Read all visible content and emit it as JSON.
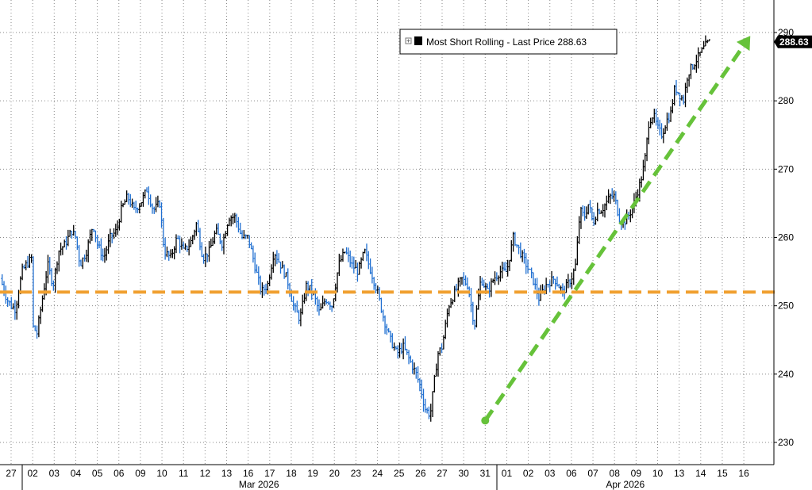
{
  "chart_data": {
    "type": "line",
    "style": "ohlc-bars",
    "legend": {
      "label": "Most Short Rolling - Last Price 288.63",
      "series_color": "#000000",
      "placement": "top-center"
    },
    "last_price_label": "288.63",
    "ylim": [
      228,
      292
    ],
    "y_ticks": [
      "230",
      "240",
      "250",
      "260",
      "270",
      "280",
      "290"
    ],
    "x_ticks": [
      "27",
      "02",
      "03",
      "04",
      "05",
      "06",
      "09",
      "10",
      "11",
      "12",
      "13",
      "16",
      "17",
      "18",
      "19",
      "20",
      "23",
      "24",
      "25",
      "26",
      "27",
      "30",
      "31",
      "01",
      "02",
      "03",
      "06",
      "07",
      "08",
      "09",
      "10",
      "13",
      "14",
      "15",
      "16"
    ],
    "months": [
      {
        "label": "Mar 2026",
        "start_index": 1,
        "end_index": 22
      },
      {
        "label": "Apr 2026",
        "start_index": 23,
        "end_index": 34
      }
    ],
    "grid": true,
    "colors": {
      "bar_up": "#000000",
      "bar_down": "#1f6fd1",
      "reference_line": "#f0a030",
      "trend_arrow": "#66c23a"
    },
    "reference_line": {
      "y": 252
    },
    "trend_arrow": {
      "start": {
        "x": 22.0,
        "y": 233.2
      },
      "end": {
        "x": 34.3,
        "y": 289.5
      }
    },
    "series": [
      {
        "close_points": [
          [
            -0.5,
            254
          ],
          [
            -0.2,
            251
          ],
          [
            0.0,
            250
          ],
          [
            0.2,
            249.5
          ],
          [
            0.5,
            255
          ],
          [
            0.7,
            256
          ],
          [
            0.95,
            257
          ],
          [
            1.0,
            247
          ],
          [
            1.2,
            246
          ],
          [
            1.5,
            252
          ],
          [
            1.7,
            256
          ],
          [
            1.95,
            253
          ],
          [
            2.2,
            258
          ],
          [
            2.5,
            259
          ],
          [
            2.8,
            261
          ],
          [
            3.0,
            260
          ],
          [
            3.2,
            256
          ],
          [
            3.5,
            258
          ],
          [
            3.8,
            262
          ],
          [
            4.0,
            259
          ],
          [
            4.3,
            257
          ],
          [
            4.6,
            260
          ],
          [
            4.9,
            261
          ],
          [
            5.1,
            264
          ],
          [
            5.4,
            266
          ],
          [
            5.7,
            264
          ],
          [
            6.0,
            265
          ],
          [
            6.3,
            267
          ],
          [
            6.6,
            264
          ],
          [
            6.9,
            265
          ],
          [
            7.1,
            258
          ],
          [
            7.4,
            257
          ],
          [
            7.7,
            260
          ],
          [
            8.0,
            258
          ],
          [
            8.3,
            259
          ],
          [
            8.6,
            262
          ],
          [
            8.9,
            257
          ],
          [
            9.2,
            258
          ],
          [
            9.5,
            261
          ],
          [
            9.8,
            259
          ],
          [
            10.1,
            263
          ],
          [
            10.4,
            263
          ],
          [
            10.7,
            260
          ],
          [
            11.0,
            260
          ],
          [
            11.3,
            256
          ],
          [
            11.6,
            252
          ],
          [
            11.9,
            253
          ],
          [
            12.2,
            258
          ],
          [
            12.5,
            256
          ],
          [
            12.8,
            254
          ],
          [
            13.1,
            250
          ],
          [
            13.4,
            248
          ],
          [
            13.7,
            253
          ],
          [
            14.0,
            252
          ],
          [
            14.3,
            249
          ],
          [
            14.6,
            251
          ],
          [
            14.9,
            250
          ],
          [
            15.2,
            256
          ],
          [
            15.5,
            258
          ],
          [
            15.8,
            256
          ],
          [
            16.1,
            255
          ],
          [
            16.4,
            258
          ],
          [
            16.7,
            255
          ],
          [
            17.0,
            252
          ],
          [
            17.3,
            248
          ],
          [
            17.6,
            245
          ],
          [
            17.9,
            243
          ],
          [
            18.2,
            244
          ],
          [
            18.5,
            242
          ],
          [
            18.8,
            240
          ],
          [
            19.0,
            238
          ],
          [
            19.2,
            235
          ],
          [
            19.45,
            234
          ],
          [
            19.6,
            238
          ],
          [
            19.8,
            243
          ],
          [
            20.0,
            244
          ],
          [
            20.3,
            250
          ],
          [
            20.6,
            252
          ],
          [
            20.9,
            254
          ],
          [
            21.2,
            253
          ],
          [
            21.5,
            247
          ],
          [
            21.8,
            254
          ],
          [
            22.1,
            252
          ],
          [
            22.4,
            254
          ],
          [
            22.7,
            255
          ],
          [
            23.0,
            255
          ],
          [
            23.3,
            260
          ],
          [
            23.6,
            258
          ],
          [
            23.9,
            256
          ],
          [
            24.2,
            254
          ],
          [
            24.5,
            251
          ],
          [
            24.8,
            253
          ],
          [
            25.2,
            254
          ],
          [
            25.6,
            252
          ],
          [
            26.0,
            254
          ],
          [
            26.2,
            256
          ],
          [
            26.4,
            264
          ],
          [
            26.6,
            263
          ],
          [
            26.8,
            265
          ],
          [
            27.0,
            262
          ],
          [
            27.2,
            264
          ],
          [
            27.4,
            264
          ],
          [
            27.6,
            265
          ],
          [
            27.8,
            266
          ],
          [
            28.0,
            266
          ],
          [
            28.2,
            263
          ],
          [
            28.4,
            262
          ],
          [
            28.6,
            263
          ],
          [
            28.8,
            264
          ],
          [
            29.0,
            266
          ],
          [
            29.2,
            268
          ],
          [
            29.4,
            271
          ],
          [
            29.6,
            277
          ],
          [
            29.8,
            278
          ],
          [
            30.0,
            276
          ],
          [
            30.2,
            275
          ],
          [
            30.4,
            277
          ],
          [
            30.6,
            278
          ],
          [
            30.8,
            282
          ],
          [
            31.0,
            281
          ],
          [
            31.2,
            280
          ],
          [
            31.4,
            284
          ],
          [
            31.6,
            285
          ],
          [
            31.8,
            286
          ],
          [
            32.0,
            287
          ],
          [
            32.2,
            288
          ],
          [
            32.4,
            288.63
          ]
        ]
      }
    ]
  }
}
